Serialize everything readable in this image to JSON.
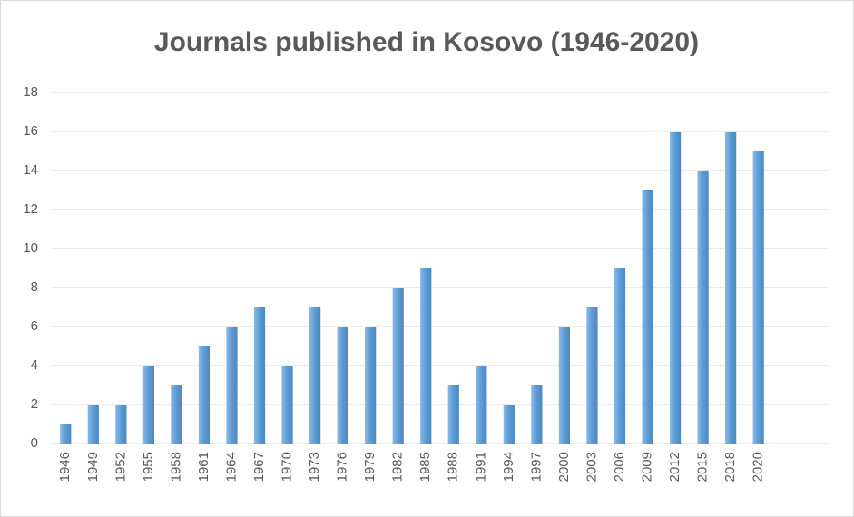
{
  "chart_data": {
    "type": "bar",
    "title": "Journals published in Kosovo (1946-2020)",
    "categories": [
      "1946",
      "1949",
      "1952",
      "1955",
      "1958",
      "1961",
      "1964",
      "1967",
      "1970",
      "1973",
      "1976",
      "1979",
      "1982",
      "1985",
      "1988",
      "1991",
      "1994",
      "1997",
      "2000",
      "2003",
      "2006",
      "2009",
      "2012",
      "2015",
      "2018",
      "2020",
      null,
      null
    ],
    "values": [
      1,
      2,
      2,
      4,
      3,
      5,
      6,
      7,
      4,
      7,
      6,
      6,
      8,
      9,
      3,
      4,
      2,
      3,
      6,
      7,
      9,
      13,
      16,
      14,
      16,
      15,
      null,
      null
    ],
    "color": "#5b9bd5",
    "ylim": [
      0,
      18
    ],
    "yticks": [
      0,
      2,
      4,
      6,
      8,
      10,
      12,
      14,
      16,
      18
    ],
    "grid": true
  }
}
